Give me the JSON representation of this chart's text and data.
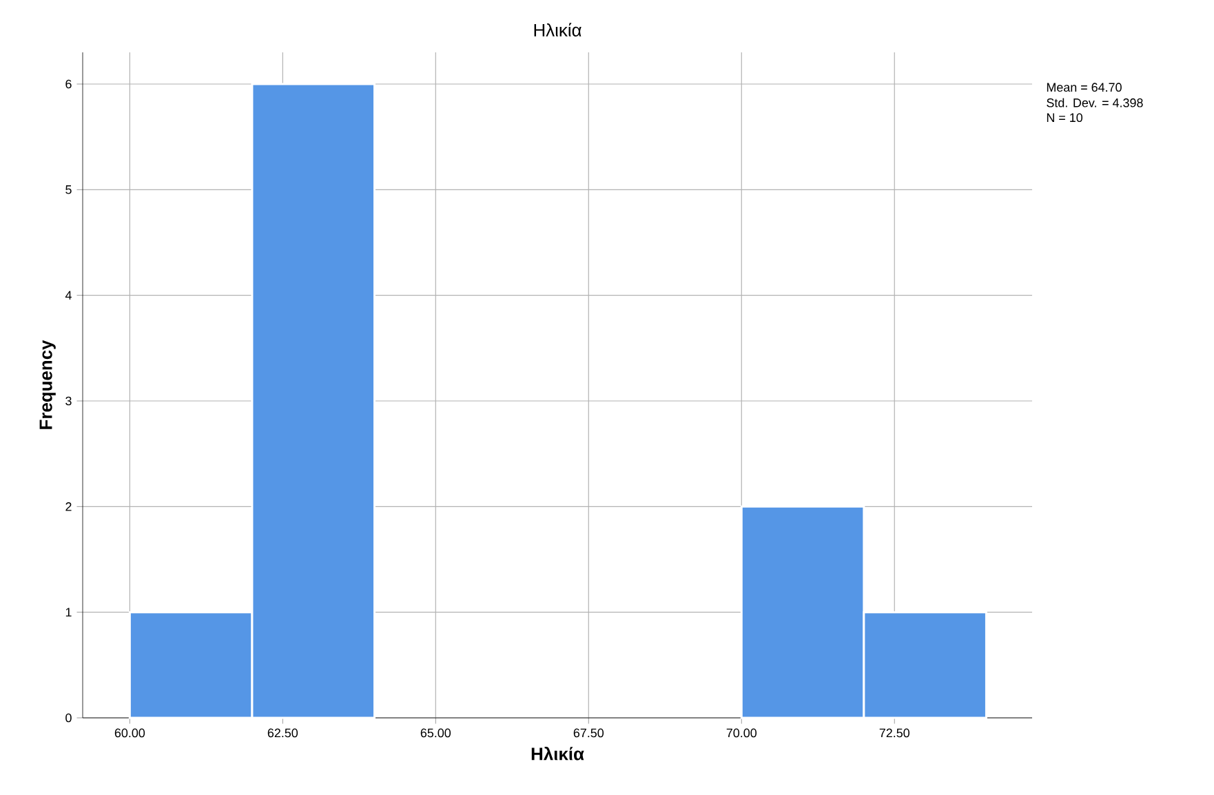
{
  "chart_data": {
    "type": "histogram",
    "title": "Ηλικία",
    "xlabel": "Ηλικία",
    "ylabel": "Frequency",
    "bins": [
      60,
      62,
      64,
      66,
      68,
      70,
      72,
      74
    ],
    "values": [
      1,
      6,
      0,
      0,
      0,
      2,
      1
    ],
    "color": "#5596e6",
    "xlim": [
      59.23,
      74.75
    ],
    "ylim": [
      0,
      6.3
    ],
    "xticks": [
      {
        "value": 60,
        "label": "60.00"
      },
      {
        "value": 62.5,
        "label": "62.50"
      },
      {
        "value": 65,
        "label": "65.00"
      },
      {
        "value": 67.5,
        "label": "67.50"
      },
      {
        "value": 70,
        "label": "70.00"
      },
      {
        "value": 72.5,
        "label": "72.50"
      }
    ],
    "yticks": [
      0,
      1,
      2,
      3,
      4,
      5,
      6
    ],
    "grid": true,
    "annotations": [
      "Mean = 64.70",
      "Std. Dev. = 4.398",
      "N = 10"
    ]
  }
}
